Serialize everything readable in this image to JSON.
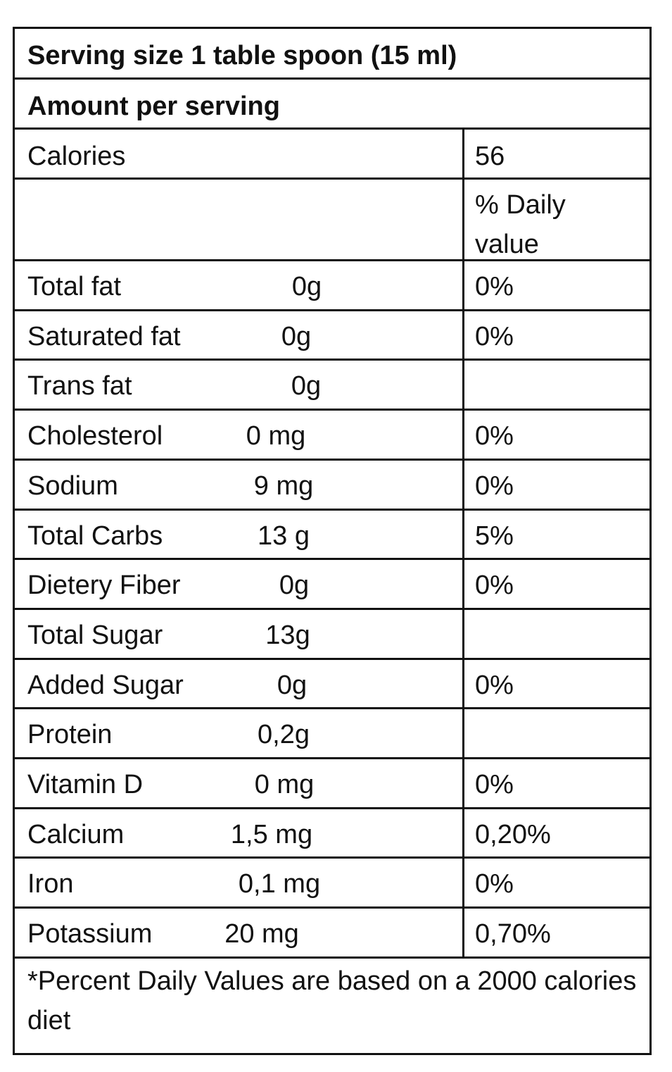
{
  "header": {
    "serving_size": "Serving size 1 table spoon (15 ml)",
    "amount_per_serving": "Amount per serving"
  },
  "calories": {
    "label": "Calories",
    "value": "56"
  },
  "daily_value_header": {
    "line1": "% Daily",
    "line2": "value"
  },
  "nutrients": [
    {
      "name": "Total fat",
      "amount": "0g",
      "percent": "0%"
    },
    {
      "name": "Saturated fat",
      "amount": "0g",
      "percent": "0%"
    },
    {
      "name": "Trans fat",
      "amount": "0g",
      "percent": ""
    },
    {
      "name": "Cholesterol",
      "amount": "0 mg",
      "percent": "0%"
    },
    {
      "name": "Sodium",
      "amount": "9 mg",
      "percent": "0%"
    },
    {
      "name": "Total Carbs",
      "amount": "13 g",
      "percent": "5%"
    },
    {
      "name": "Dietery Fiber",
      "amount": "0g",
      "percent": "0%"
    },
    {
      "name": "Total Sugar",
      "amount": "13g",
      "percent": ""
    },
    {
      "name": "Added Sugar",
      "amount": "0g",
      "percent": "0%"
    },
    {
      "name": "Protein",
      "amount": "0,2g",
      "percent": ""
    },
    {
      "name": "Vitamin D",
      "amount": "0 mg",
      "percent": "0%"
    },
    {
      "name": "Calcium",
      "amount": "1,5 mg",
      "percent": "0,20%"
    },
    {
      "name": "Iron",
      "amount": "0,1 mg",
      "percent": "0%"
    },
    {
      "name": "Potassium",
      "amount": "20 mg",
      "percent": "0,70%"
    }
  ],
  "footnote": "*Percent Daily Values are based on a 2000 calories diet"
}
